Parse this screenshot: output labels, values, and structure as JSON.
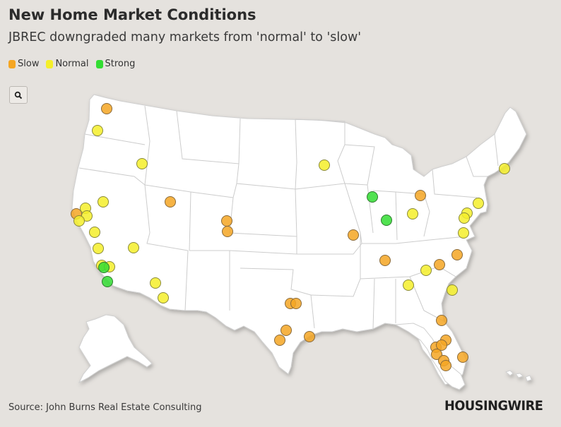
{
  "header": {
    "title": "New Home Market Conditions",
    "subtitle": "JBREC downgraded many markets from 'normal' to 'slow'"
  },
  "legend": [
    {
      "label": "Slow",
      "color": "#f5a623"
    },
    {
      "label": "Normal",
      "color": "#f5ef2a"
    },
    {
      "label": "Strong",
      "color": "#33dd33"
    }
  ],
  "zoom": {
    "icon": "search-icon"
  },
  "footer": {
    "source": "Source: John Burns Real Estate Consulting",
    "logo": "HOUSINGWIRE"
  },
  "status_colors": {
    "slow": "#f5a623",
    "normal": "#f5ef2a",
    "strong": "#33dd33"
  }
}
